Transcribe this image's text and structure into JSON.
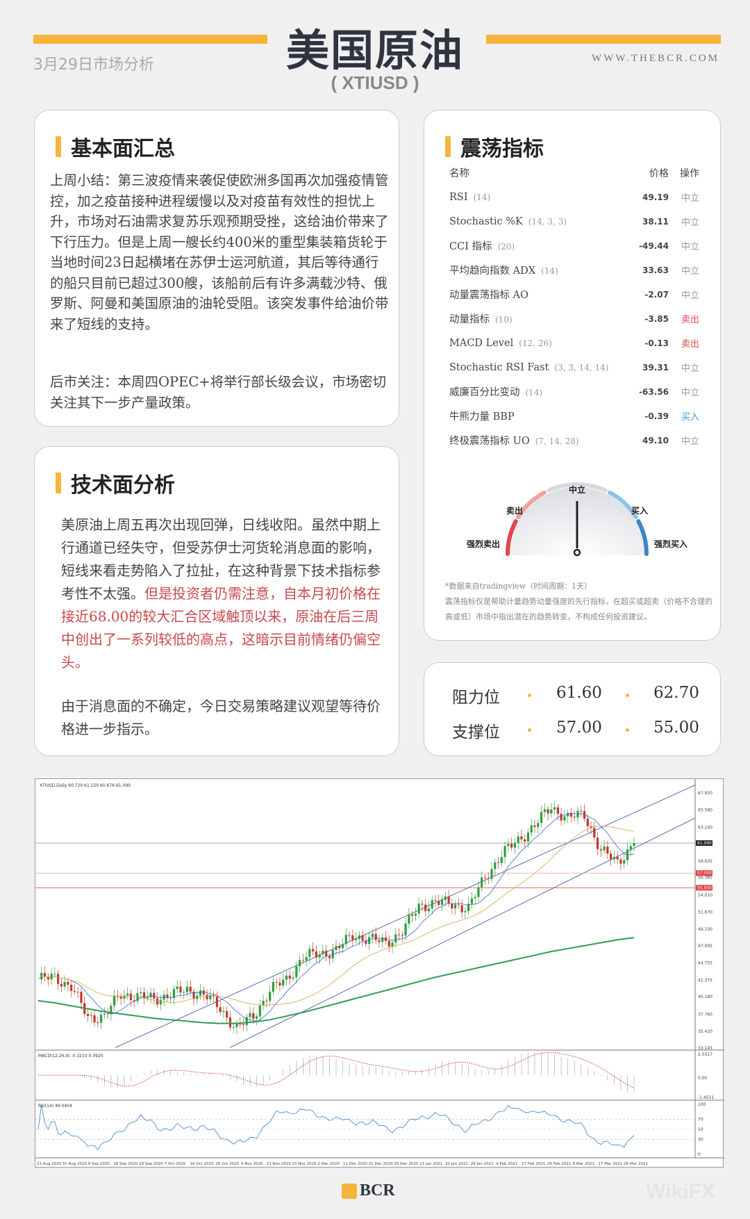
{
  "header": {
    "title": "美国原油",
    "symbol": "( XTIUSD )",
    "date": "3月29日市场分析",
    "url": "WWW.THEBCR.COM"
  },
  "fundamental": {
    "heading": "基本面汇总",
    "p1": "上周小结：第三波疫情来袭促使欧洲多国再次加强疫情管控，加之疫苗接种进程缓慢以及对疫苗有效性的担忧上升，市场对石油需求复苏乐观预期受挫，这给油价带来了下行压力。但是上周一艘长约400米的重型集装箱货轮于当地时间23日起横堵在苏伊士运河航道，其后等待通行的船只目前已超过300艘，该船前后有许多满载沙特、俄罗斯、阿曼和美国原油的油轮受阻。该突发事件给油价带来了短线的支持。",
    "p2": "后市关注：本周四OPEC+将举行部长级会议，市场密切关注其下一步产量政策。"
  },
  "technical": {
    "heading": "技术面分析",
    "p1_plain": "美原油上周五再次出现回弹，日线收阳。虽然中期上行通道已经失守，但受苏伊士河货轮消息面的影响，短线来看走势陷入了拉扯，在这种背景下技术指标参考性不太强。",
    "p1_red": "但是投资者仍需注意，自本月初价格在接近68.00的较大汇合区域触顶以来，原油在后三周中创出了一系列较低的高点，这暗示目前情绪仍偏空头。",
    "p2": "由于消息面的不确定，今日交易策略建议观望等待价格进一步指示。"
  },
  "oscillators": {
    "heading": "震荡指标",
    "col_name": "名称",
    "col_price": "价格",
    "col_action": "操作",
    "rows": [
      {
        "name": "RSI",
        "param": "(14)",
        "value": "49.19",
        "action": "中立"
      },
      {
        "name": "Stochastic %K",
        "param": "(14, 3, 3)",
        "value": "38.11",
        "action": "中立"
      },
      {
        "name": "CCI 指标",
        "param": "(20)",
        "value": "-49.44",
        "action": "中立"
      },
      {
        "name": "平均趋向指数 ADX",
        "param": "(14)",
        "value": "33.63",
        "action": "中立"
      },
      {
        "name": "动量震荡指标 AO",
        "param": "",
        "value": "-2.07",
        "action": "中立"
      },
      {
        "name": "动量指标",
        "param": "(10)",
        "value": "-3.85",
        "action": "卖出"
      },
      {
        "name": "MACD Level",
        "param": "(12, 26)",
        "value": "-0.13",
        "action": "卖出"
      },
      {
        "name": "Stochastic RSI Fast",
        "param": "(3, 3, 14, 14)",
        "value": "39.31",
        "action": "中立"
      },
      {
        "name": "威廉百分比变动",
        "param": "(14)",
        "value": "-63.56",
        "action": "中立"
      },
      {
        "name": "牛熊力量 BBP",
        "param": "",
        "value": "-0.39",
        "action": "买入"
      },
      {
        "name": "终极震荡指标 UO",
        "param": "(7, 14, 28)",
        "value": "49.10",
        "action": "中立"
      }
    ],
    "action_colors": {
      "中立": "#999999",
      "卖出": "#e0474c",
      "买入": "#3a9ad9"
    },
    "gauge": {
      "strong_sell": "强烈卖出",
      "sell": "卖出",
      "neutral": "中立",
      "buy": "买入",
      "strong_buy": "强烈买入",
      "reading": "中立"
    },
    "source": "*数据来自tradingview（时间周期：1天）",
    "disclaimer": "震荡指标仅是帮助计量趋势动量强度的先行指标，在超买或超卖（价格不合理的高或低）市场中指出潜在的趋势转变，不构成任何投资建议。"
  },
  "levels": {
    "resistance_label": "阻力位",
    "r1": "61.60",
    "r2": "62.70",
    "support_label": "支撑位",
    "s1": "57.00",
    "s2": "55.00"
  },
  "chart_data": {
    "type": "candlestick",
    "title": "XTIUSD,Daily  60.720 61.150 60.676 61.090",
    "macd_label": "MACD(12,26,9) -0.3210 0.0920",
    "rsi_label": "RSI(14) 49.0404",
    "ylim": [
      33.145,
      67.92
    ],
    "y_ticks": [
      "67.920",
      "65.580",
      "63.240",
      "58.625",
      "56.385",
      "54.010",
      "51.670",
      "49.330",
      "47.095",
      "44.755",
      "42.375",
      "40.180",
      "37.760",
      "35.420",
      "33.145"
    ],
    "y_tick_values": [
      67.92,
      65.58,
      63.24,
      58.625,
      56.385,
      54.01,
      51.67,
      49.33,
      47.095,
      44.755,
      42.375,
      40.18,
      37.76,
      35.42,
      33.145
    ],
    "price_marker": "61.090",
    "level_markers": [
      "57.000",
      "55.000"
    ],
    "macd_ticks": [
      "2.0317",
      "0.00",
      "-1.4511"
    ],
    "rsi_ticks": [
      "100",
      "70",
      "50",
      "30",
      "0"
    ],
    "x_labels": [
      "21 Aug 2020",
      "31 Aug 2020",
      "9 Sep 2020",
      "18 Sep 2020",
      "29 Sep 2020",
      "7 Oct 2020",
      "16 Oct 2020",
      "26 Oct 2020",
      "4 Nov 2020",
      "13 Nov 2020",
      "23 Nov 2020",
      "2 Dec 2020",
      "11 Dec 2020",
      "21 Dec 2020",
      "30 Dec 2020",
      "11 Jan 2021",
      "20 Jan 2021",
      "29 Jan 2021",
      "9 Feb 2021",
      "17 Feb 2021",
      "26 Feb 2021",
      "8 Mar 2021",
      "17 Mar 2021",
      "26 Mar 2021"
    ],
    "weekly_close": [
      42.5,
      42.8,
      41.5,
      37.3,
      37.5,
      40.5,
      40.2,
      39.8,
      40.5,
      41.0,
      40.5,
      38.5,
      35.8,
      37.5,
      41.0,
      42.5,
      45.5,
      46.0,
      46.5,
      48.5,
      48.0,
      47.5,
      49.0,
      52.5,
      53.0,
      52.8,
      52.2,
      56.5,
      59.5,
      61.5,
      63.5,
      66.0,
      64.5,
      65.0,
      60.0,
      58.5,
      61.09
    ],
    "ma200": [
      39.6,
      39.3,
      38.9,
      38.5,
      38.1,
      37.8,
      37.5,
      37.2,
      37.0,
      36.8,
      36.6,
      36.5,
      36.5,
      36.7,
      37.0,
      37.5,
      38.0,
      38.6,
      39.2,
      39.8,
      40.4,
      41.0,
      41.6,
      42.2,
      42.8,
      43.3,
      43.8,
      44.3,
      44.8,
      45.3,
      45.8,
      46.3,
      46.7,
      47.1,
      47.5,
      47.9,
      48.2
    ],
    "colors": {
      "up": "#2e9e3e",
      "down": "#c0392b",
      "ma200": "#2e9e55",
      "ma_fast": "#3366cc",
      "ma_mid": "#d4a340",
      "channel": "#3344aa",
      "resistance": "#c8484c"
    }
  },
  "footer": {
    "logo": "BCR",
    "watermark": "WikiFX"
  }
}
